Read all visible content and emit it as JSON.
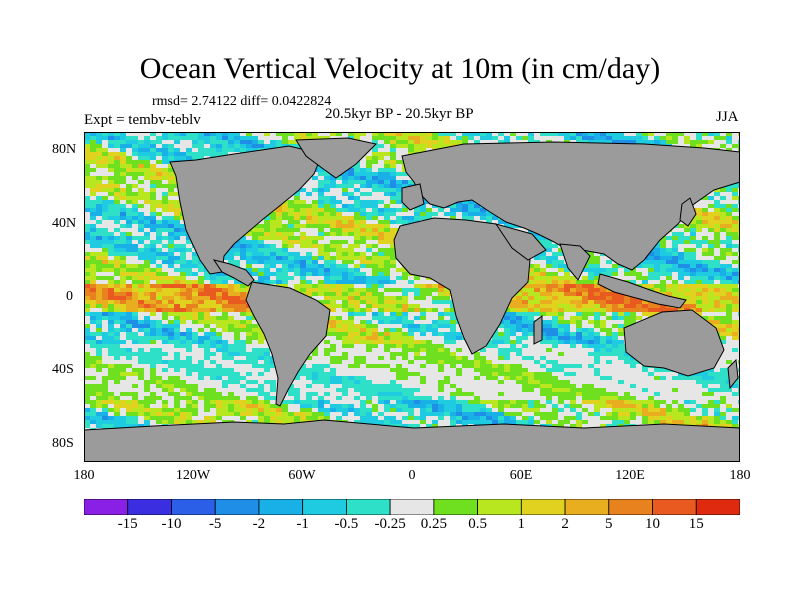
{
  "title": "Ocean Vertical Velocity at 10m (in cm/day)",
  "stats": "rmsd= 2.74122 diff= 0.0422824",
  "experiment": "Expt = tembv-teblv",
  "period": "20.5kyr BP - 20.5kyr BP",
  "season": "JJA",
  "y_axis_ticks": [
    "80N",
    "40N",
    "0",
    "40S",
    "80S"
  ],
  "x_axis_ticks": [
    "180",
    "120W",
    "60W",
    "0",
    "60E",
    "120E",
    "180"
  ],
  "colorbar": {
    "labels": [
      "-15",
      "-10",
      "-5",
      "-2",
      "-1",
      "-0.5",
      "-0.25",
      "0.25",
      "0.5",
      "1",
      "2",
      "5",
      "10",
      "15"
    ],
    "colors": [
      "#8a1fe6",
      "#3a2ee0",
      "#2b5fe8",
      "#1f8ee6",
      "#19b0e8",
      "#1fcbe0",
      "#2ee0c8",
      "#e6e6e6",
      "#6ee01f",
      "#b8e61f",
      "#e0d21f",
      "#e8ae1f",
      "#e8821f",
      "#e85a1f",
      "#e02a10"
    ]
  },
  "map_colors": {
    "land": "#9b9b9b",
    "coast": "#000000"
  }
}
